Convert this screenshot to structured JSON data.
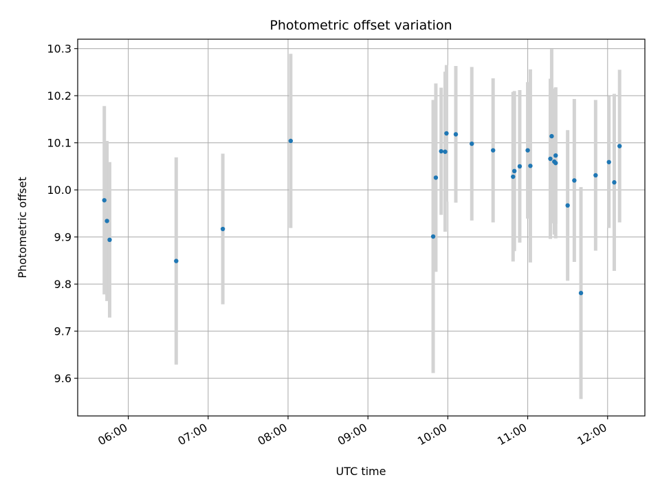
{
  "chart_data": {
    "type": "scatter",
    "title": "Photometric offset variation",
    "xlabel": "UTC time",
    "ylabel": "Photometric offset",
    "x_tick_labels": [
      "06:00",
      "07:00",
      "08:00",
      "09:00",
      "10:00",
      "11:00",
      "12:00"
    ],
    "y_tick_labels": [
      "9.6",
      "9.7",
      "9.8",
      "9.9",
      "10.0",
      "10.1",
      "10.2",
      "10.3"
    ],
    "xlim": [
      "05:22",
      "12:28"
    ],
    "ylim": [
      9.52,
      10.32
    ],
    "grid": true,
    "marker_color": "#1f77b4",
    "errorbar_color": "#d3d3d3",
    "points": [
      {
        "t": "05:42",
        "y": 9.978,
        "err": 0.2
      },
      {
        "t": "05:44",
        "y": 9.934,
        "err": 0.17
      },
      {
        "t": "05:46",
        "y": 9.894,
        "err": 0.165
      },
      {
        "t": "06:36",
        "y": 9.849,
        "err": 0.22
      },
      {
        "t": "07:11",
        "y": 9.917,
        "err": 0.16
      },
      {
        "t": "08:02",
        "y": 10.104,
        "err": 0.185
      },
      {
        "t": "09:49",
        "y": 9.901,
        "err": 0.29
      },
      {
        "t": "09:51",
        "y": 10.026,
        "err": 0.2
      },
      {
        "t": "09:55",
        "y": 10.082,
        "err": 0.135
      },
      {
        "t": "09:58",
        "y": 10.081,
        "err": 0.17
      },
      {
        "t": "09:59",
        "y": 10.12,
        "err": 0.145
      },
      {
        "t": "10:06",
        "y": 10.118,
        "err": 0.145
      },
      {
        "t": "10:18",
        "y": 10.098,
        "err": 0.163
      },
      {
        "t": "10:34",
        "y": 10.084,
        "err": 0.153
      },
      {
        "t": "10:49",
        "y": 10.028,
        "err": 0.18
      },
      {
        "t": "10:50",
        "y": 10.04,
        "err": 0.17
      },
      {
        "t": "10:54",
        "y": 10.05,
        "err": 0.162
      },
      {
        "t": "11:00",
        "y": 10.084,
        "err": 0.145
      },
      {
        "t": "11:02",
        "y": 10.051,
        "err": 0.205
      },
      {
        "t": "11:17",
        "y": 10.066,
        "err": 0.17
      },
      {
        "t": "11:18",
        "y": 10.114,
        "err": 0.185
      },
      {
        "t": "11:20",
        "y": 10.06,
        "err": 0.155
      },
      {
        "t": "11:21",
        "y": 10.057,
        "err": 0.16
      },
      {
        "t": "11:21",
        "y": 10.073,
        "err": 0.145
      },
      {
        "t": "11:30",
        "y": 9.967,
        "err": 0.16
      },
      {
        "t": "11:35",
        "y": 10.02,
        "err": 0.173
      },
      {
        "t": "11:40",
        "y": 9.781,
        "err": 0.225
      },
      {
        "t": "11:51",
        "y": 10.031,
        "err": 0.16
      },
      {
        "t": "12:01",
        "y": 10.059,
        "err": 0.14
      },
      {
        "t": "12:05",
        "y": 10.016,
        "err": 0.188
      },
      {
        "t": "12:09",
        "y": 10.093,
        "err": 0.162
      }
    ]
  }
}
